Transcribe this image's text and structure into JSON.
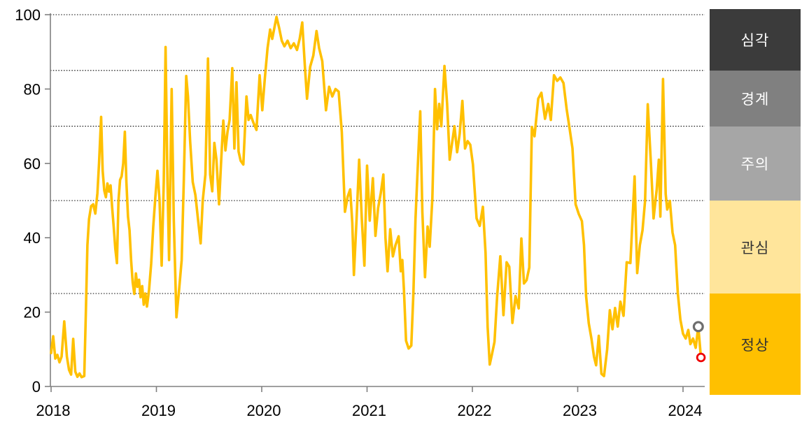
{
  "chart_data": {
    "type": "line",
    "x_axis": {
      "ticks": [
        "2018",
        "2019",
        "2020",
        "2021",
        "2022",
        "2023",
        "2024"
      ],
      "tick_values": [
        2018,
        2019,
        2020,
        2021,
        2022,
        2023,
        2024
      ],
      "range": [
        2018,
        2024.22
      ]
    },
    "y_axis": {
      "ticks": [
        "0",
        "20",
        "40",
        "60",
        "80",
        "100"
      ],
      "tick_values": [
        0,
        20,
        40,
        60,
        80,
        100
      ],
      "range": [
        0,
        100
      ]
    },
    "gridlines_y": [
      25,
      50,
      70,
      85,
      100
    ],
    "grid_color": "#000000",
    "axis_color": "#808080",
    "series": [
      {
        "name": "financial-stress-index",
        "color": "#FFC000",
        "points": [
          [
            2018.0,
            9
          ],
          [
            2018.02,
            13.5
          ],
          [
            2018.04,
            7.5
          ],
          [
            2018.06,
            8.5
          ],
          [
            2018.08,
            6.5
          ],
          [
            2018.1,
            8
          ],
          [
            2018.125,
            17.5
          ],
          [
            2018.15,
            8
          ],
          [
            2018.17,
            4.5
          ],
          [
            2018.19,
            3.2
          ],
          [
            2018.21,
            12.8
          ],
          [
            2018.23,
            4
          ],
          [
            2018.25,
            2.6
          ],
          [
            2018.27,
            3.5
          ],
          [
            2018.29,
            2.5
          ],
          [
            2018.315,
            2.8
          ],
          [
            2018.33,
            20
          ],
          [
            2018.345,
            38
          ],
          [
            2018.36,
            45
          ],
          [
            2018.38,
            48.5
          ],
          [
            2018.4,
            49
          ],
          [
            2018.42,
            46.5
          ],
          [
            2018.44,
            52
          ],
          [
            2018.455,
            60
          ],
          [
            2018.475,
            72.5
          ],
          [
            2018.49,
            58
          ],
          [
            2018.505,
            52.7
          ],
          [
            2018.52,
            50.9
          ],
          [
            2018.535,
            54.6
          ],
          [
            2018.55,
            52.4
          ],
          [
            2018.565,
            54.1
          ],
          [
            2018.58,
            48
          ],
          [
            2018.595,
            42.9
          ],
          [
            2018.61,
            37
          ],
          [
            2018.625,
            33.2
          ],
          [
            2018.64,
            50
          ],
          [
            2018.655,
            55.6
          ],
          [
            2018.67,
            56.5
          ],
          [
            2018.685,
            60
          ],
          [
            2018.7,
            68.5
          ],
          [
            2018.715,
            55
          ],
          [
            2018.73,
            45.7
          ],
          [
            2018.745,
            42
          ],
          [
            2018.76,
            33.8
          ],
          [
            2018.775,
            28
          ],
          [
            2018.79,
            24.9
          ],
          [
            2018.805,
            30.4
          ],
          [
            2018.82,
            26.8
          ],
          [
            2018.835,
            28.7
          ],
          [
            2018.85,
            24
          ],
          [
            2018.865,
            27
          ],
          [
            2018.88,
            22
          ],
          [
            2018.895,
            25
          ],
          [
            2018.91,
            21.5
          ],
          [
            2018.93,
            26
          ],
          [
            2018.95,
            33
          ],
          [
            2018.97,
            43
          ],
          [
            2018.99,
            51
          ],
          [
            2019.01,
            58
          ],
          [
            2019.03,
            50
          ],
          [
            2019.05,
            32.5
          ],
          [
            2019.07,
            55
          ],
          [
            2019.087,
            91.3
          ],
          [
            2019.105,
            55
          ],
          [
            2019.12,
            34
          ],
          [
            2019.145,
            80
          ],
          [
            2019.165,
            45
          ],
          [
            2019.19,
            18.6
          ],
          [
            2019.215,
            26
          ],
          [
            2019.24,
            34
          ],
          [
            2019.26,
            55
          ],
          [
            2019.283,
            83.5
          ],
          [
            2019.3,
            78
          ],
          [
            2019.32,
            66
          ],
          [
            2019.345,
            55
          ],
          [
            2019.37,
            51.5
          ],
          [
            2019.395,
            45
          ],
          [
            2019.42,
            38.5
          ],
          [
            2019.44,
            50
          ],
          [
            2019.465,
            57
          ],
          [
            2019.49,
            88.2
          ],
          [
            2019.51,
            57
          ],
          [
            2019.53,
            52.5
          ],
          [
            2019.55,
            65.5
          ],
          [
            2019.57,
            61
          ],
          [
            2019.595,
            49
          ],
          [
            2019.615,
            61
          ],
          [
            2019.635,
            71.5
          ],
          [
            2019.655,
            63.5
          ],
          [
            2019.675,
            68.5
          ],
          [
            2019.695,
            71.7
          ],
          [
            2019.72,
            85.6
          ],
          [
            2019.74,
            64
          ],
          [
            2019.76,
            81.8
          ],
          [
            2019.78,
            63.2
          ],
          [
            2019.8,
            60.7
          ],
          [
            2019.825,
            59.7
          ],
          [
            2019.855,
            78
          ],
          [
            2019.875,
            71.7
          ],
          [
            2019.895,
            73
          ],
          [
            2019.92,
            71
          ],
          [
            2019.95,
            69
          ],
          [
            2019.98,
            83.7
          ],
          [
            2020.005,
            74.3
          ],
          [
            2020.03,
            83
          ],
          [
            2020.055,
            91
          ],
          [
            2020.08,
            96
          ],
          [
            2020.1,
            93.5
          ],
          [
            2020.12,
            96.5
          ],
          [
            2020.14,
            99.4
          ],
          [
            2020.165,
            96.5
          ],
          [
            2020.19,
            93
          ],
          [
            2020.215,
            91.5
          ],
          [
            2020.245,
            93
          ],
          [
            2020.275,
            91
          ],
          [
            2020.305,
            92.3
          ],
          [
            2020.335,
            90.5
          ],
          [
            2020.36,
            93.5
          ],
          [
            2020.385,
            97.9
          ],
          [
            2020.41,
            86
          ],
          [
            2020.43,
            77.4
          ],
          [
            2020.46,
            86
          ],
          [
            2020.49,
            89
          ],
          [
            2020.52,
            95.6
          ],
          [
            2020.545,
            91
          ],
          [
            2020.575,
            87.5
          ],
          [
            2020.61,
            74.3
          ],
          [
            2020.64,
            80.6
          ],
          [
            2020.67,
            78
          ],
          [
            2020.7,
            80
          ],
          [
            2020.73,
            79.3
          ],
          [
            2020.76,
            68.5
          ],
          [
            2020.79,
            47
          ],
          [
            2020.815,
            51
          ],
          [
            2020.84,
            53
          ],
          [
            2020.86,
            44
          ],
          [
            2020.875,
            30
          ],
          [
            2020.9,
            45
          ],
          [
            2020.925,
            61
          ],
          [
            2020.95,
            45
          ],
          [
            2020.975,
            32.5
          ],
          [
            2021.0,
            59.4
          ],
          [
            2021.025,
            44.6
          ],
          [
            2021.055,
            56
          ],
          [
            2021.08,
            40.5
          ],
          [
            2021.105,
            48
          ],
          [
            2021.13,
            52
          ],
          [
            2021.155,
            57
          ],
          [
            2021.175,
            40
          ],
          [
            2021.195,
            31
          ],
          [
            2021.22,
            42.3
          ],
          [
            2021.245,
            35
          ],
          [
            2021.27,
            38
          ],
          [
            2021.3,
            40.4
          ],
          [
            2021.32,
            31
          ],
          [
            2021.335,
            34
          ],
          [
            2021.35,
            26
          ],
          [
            2021.37,
            12.3
          ],
          [
            2021.395,
            10.2
          ],
          [
            2021.42,
            11
          ],
          [
            2021.44,
            25
          ],
          [
            2021.46,
            45
          ],
          [
            2021.48,
            58
          ],
          [
            2021.505,
            74
          ],
          [
            2021.525,
            47
          ],
          [
            2021.55,
            29.4
          ],
          [
            2021.575,
            43
          ],
          [
            2021.595,
            37.6
          ],
          [
            2021.62,
            50.5
          ],
          [
            2021.645,
            80
          ],
          [
            2021.665,
            69.2
          ],
          [
            2021.685,
            76
          ],
          [
            2021.705,
            70
          ],
          [
            2021.735,
            86.2
          ],
          [
            2021.76,
            76
          ],
          [
            2021.785,
            61
          ],
          [
            2021.81,
            66
          ],
          [
            2021.83,
            70
          ],
          [
            2021.855,
            63
          ],
          [
            2021.88,
            68
          ],
          [
            2021.905,
            76.8
          ],
          [
            2021.93,
            64
          ],
          [
            2021.955,
            66
          ],
          [
            2021.98,
            65
          ],
          [
            2022.005,
            59.7
          ],
          [
            2022.04,
            45.2
          ],
          [
            2022.07,
            43.2
          ],
          [
            2022.1,
            48.3
          ],
          [
            2022.125,
            36
          ],
          [
            2022.145,
            16
          ],
          [
            2022.165,
            5.9
          ],
          [
            2022.185,
            8.5
          ],
          [
            2022.21,
            12
          ],
          [
            2022.235,
            24.3
          ],
          [
            2022.265,
            35
          ],
          [
            2022.295,
            19.2
          ],
          [
            2022.325,
            33.4
          ],
          [
            2022.35,
            32.2
          ],
          [
            2022.38,
            17.1
          ],
          [
            2022.41,
            24.3
          ],
          [
            2022.44,
            21
          ],
          [
            2022.465,
            39.8
          ],
          [
            2022.49,
            27.7
          ],
          [
            2022.515,
            28.6
          ],
          [
            2022.54,
            32
          ],
          [
            2022.565,
            69.8
          ],
          [
            2022.59,
            67.3
          ],
          [
            2022.625,
            77.4
          ],
          [
            2022.655,
            79
          ],
          [
            2022.69,
            72
          ],
          [
            2022.72,
            76
          ],
          [
            2022.745,
            71.7
          ],
          [
            2022.775,
            83.7
          ],
          [
            2022.805,
            82.2
          ],
          [
            2022.835,
            83.1
          ],
          [
            2022.865,
            81.6
          ],
          [
            2022.895,
            74.6
          ],
          [
            2022.925,
            69
          ],
          [
            2022.95,
            64.1
          ],
          [
            2022.98,
            49
          ],
          [
            2023.01,
            46.4
          ],
          [
            2023.04,
            44.5
          ],
          [
            2023.06,
            38
          ],
          [
            2023.08,
            24.3
          ],
          [
            2023.105,
            17
          ],
          [
            2023.13,
            12.9
          ],
          [
            2023.155,
            8
          ],
          [
            2023.175,
            5.7
          ],
          [
            2023.2,
            13.6
          ],
          [
            2023.225,
            3.4
          ],
          [
            2023.25,
            2.8
          ],
          [
            2023.28,
            10
          ],
          [
            2023.305,
            20.5
          ],
          [
            2023.33,
            15.4
          ],
          [
            2023.355,
            21.1
          ],
          [
            2023.38,
            16.1
          ],
          [
            2023.405,
            22.8
          ],
          [
            2023.435,
            19
          ],
          [
            2023.465,
            33.4
          ],
          [
            2023.5,
            33.2
          ],
          [
            2023.54,
            56.5
          ],
          [
            2023.565,
            30.5
          ],
          [
            2023.59,
            38
          ],
          [
            2023.615,
            42
          ],
          [
            2023.64,
            50
          ],
          [
            2023.665,
            75.9
          ],
          [
            2023.695,
            60
          ],
          [
            2023.72,
            45.2
          ],
          [
            2023.75,
            53
          ],
          [
            2023.77,
            61
          ],
          [
            2023.785,
            45.7
          ],
          [
            2023.81,
            82.7
          ],
          [
            2023.835,
            51.8
          ],
          [
            2023.85,
            47.6
          ],
          [
            2023.875,
            49.9
          ],
          [
            2023.9,
            41.4
          ],
          [
            2023.925,
            38
          ],
          [
            2023.95,
            25.2
          ],
          [
            2023.975,
            18
          ],
          [
            2024.0,
            14.2
          ],
          [
            2024.025,
            12.9
          ],
          [
            2024.05,
            15.2
          ],
          [
            2024.07,
            11.4
          ],
          [
            2024.095,
            12.9
          ],
          [
            2024.12,
            10.4
          ],
          [
            2024.145,
            16.1
          ],
          [
            2024.17,
            7.8
          ]
        ]
      }
    ],
    "end_markers": [
      {
        "name": "gray-open-marker",
        "x": 2024.145,
        "y": 16.1,
        "stroke": "#6E6E6E"
      },
      {
        "name": "red-open-marker",
        "x": 2024.17,
        "y": 7.8,
        "stroke": "#EE0000"
      }
    ],
    "risk_bands": [
      {
        "label": "심각",
        "from": 85,
        "to": 100,
        "color": "#3B3B3B",
        "text_color": "#FFFFFF"
      },
      {
        "label": "경계",
        "from": 70,
        "to": 85,
        "color": "#808080",
        "text_color": "#FFFFFF"
      },
      {
        "label": "주의",
        "from": 50,
        "to": 70,
        "color": "#A6A6A6",
        "text_color": "#FFFFFF"
      },
      {
        "label": "관심",
        "from": 25,
        "to": 50,
        "color": "#FFE59B",
        "text_color": "#333333"
      },
      {
        "label": "정상",
        "from": 0,
        "to": 25,
        "color": "#FFC000",
        "text_color": "#333333"
      }
    ]
  }
}
